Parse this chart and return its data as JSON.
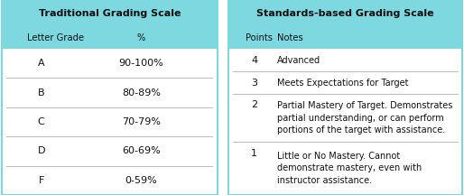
{
  "header_bg": "#7dd8e0",
  "divider_color": "#b0b0b0",
  "bg_color": "#ffffff",
  "left_title": "Traditional Grading Scale",
  "right_title": "Standards-based Grading Scale",
  "left_col1_header": "Letter Grade",
  "left_col2_header": "%",
  "right_col1_header": "Points",
  "right_col2_header": "Notes",
  "left_rows": [
    [
      "A",
      "90-100%"
    ],
    [
      "B",
      "80-89%"
    ],
    [
      "C",
      "70-79%"
    ],
    [
      "D",
      "60-69%"
    ],
    [
      "F",
      "0-59%"
    ]
  ],
  "right_rows": [
    [
      "4",
      "Advanced"
    ],
    [
      "3",
      "Meets Expectations for Target"
    ],
    [
      "2",
      "Partial Mastery of Target. Demonstrates\npartial understanding, or can perform\nportions of the target with assistance."
    ],
    [
      "1",
      "Little or No Mastery. Cannot\ndemonstrate mastery, even with\ninstructor assistance."
    ]
  ],
  "title_fontsize": 8.0,
  "header_fontsize": 7.2,
  "body_fontsize": 7.0,
  "text_color": "#111111"
}
